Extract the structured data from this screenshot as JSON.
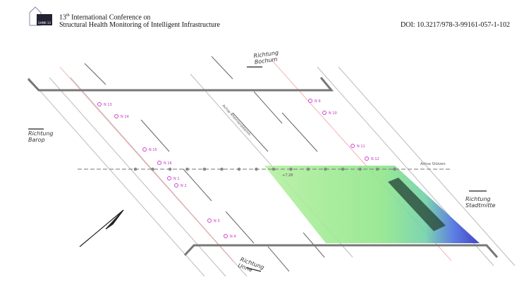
{
  "header": {
    "logo": "SHMII-13",
    "conference_number": "13",
    "conference_suffix": "th",
    "conference_line1_rest": " International Conference on",
    "conference_line2": "Structural Health Monitoring of Intelligent Infrastructure",
    "doi": "DOI: 10.3217/978-3-99161-057-1-102"
  },
  "diagram": {
    "directions": [
      {
        "line1": "Richtung",
        "line2": "Bochum"
      },
      {
        "line1": "Richtung",
        "line2": "Barop"
      },
      {
        "line1": "Richtung",
        "line2": "Stadtmitte"
      },
      {
        "line1": "Richtung",
        "line2": "Unna"
      }
    ],
    "axis_labels": [
      "Achse Stützen",
      "Achse Rheinlanddamm",
      "+7,28"
    ],
    "nodes": [
      "N 13",
      "N 14",
      "N 15",
      "N 16",
      "N 1",
      "N 2",
      "N 3",
      "N 4",
      "N 9",
      "N 10",
      "N 11",
      "N 12"
    ]
  }
}
